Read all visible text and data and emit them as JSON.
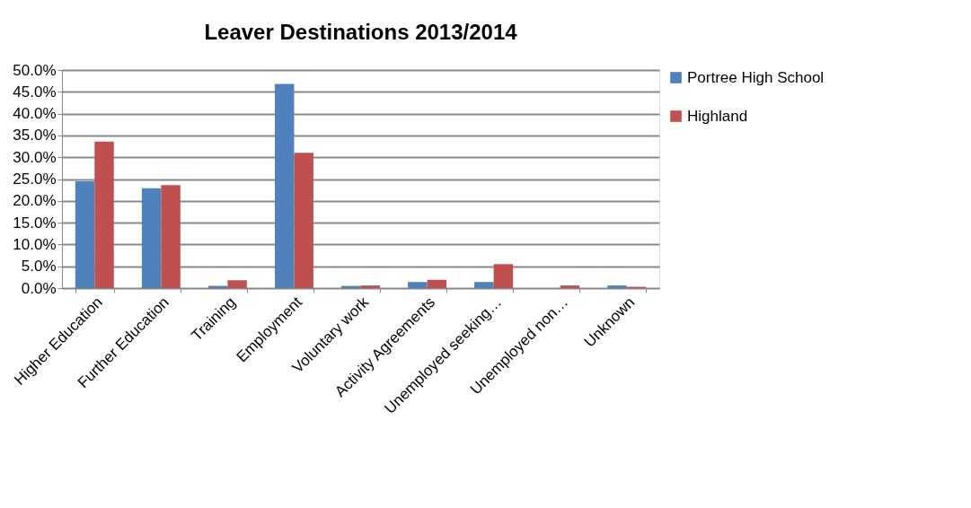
{
  "chart_data": {
    "type": "bar",
    "title": "Leaver Destinations 2013/2014",
    "categories": [
      "Higher Education",
      "Further Education",
      "Training",
      "Employment",
      "Voluntary work",
      "Activity Agreements",
      "Unemployed seeking…",
      "Unemployed non…",
      "Unknown"
    ],
    "series": [
      {
        "name": "Portree High School",
        "color": "#4f81bd",
        "values": [
          24.5,
          22.9,
          0.5,
          46.8,
          0.5,
          1.4,
          1.4,
          null,
          0.6
        ]
      },
      {
        "name": "Highland",
        "color": "#c0504d",
        "values": [
          33.6,
          23.6,
          1.8,
          31.0,
          0.6,
          1.9,
          5.5,
          0.6,
          0.3
        ]
      }
    ],
    "ylim": [
      0,
      50
    ],
    "yticks": [
      {
        "value": 0,
        "label": "0.0%"
      },
      {
        "value": 5,
        "label": "5.0%"
      },
      {
        "value": 10,
        "label": "10.0%"
      },
      {
        "value": 15,
        "label": "15.0%"
      },
      {
        "value": 20,
        "label": "20.0%"
      },
      {
        "value": 25,
        "label": "25.0%"
      },
      {
        "value": 30,
        "label": "30.0%"
      },
      {
        "value": 35,
        "label": "35.0%"
      },
      {
        "value": 40,
        "label": "40.0%"
      },
      {
        "value": 45,
        "label": "45.0%"
      },
      {
        "value": 50,
        "label": "50.0%"
      }
    ],
    "grid": "y",
    "legend": "right"
  }
}
